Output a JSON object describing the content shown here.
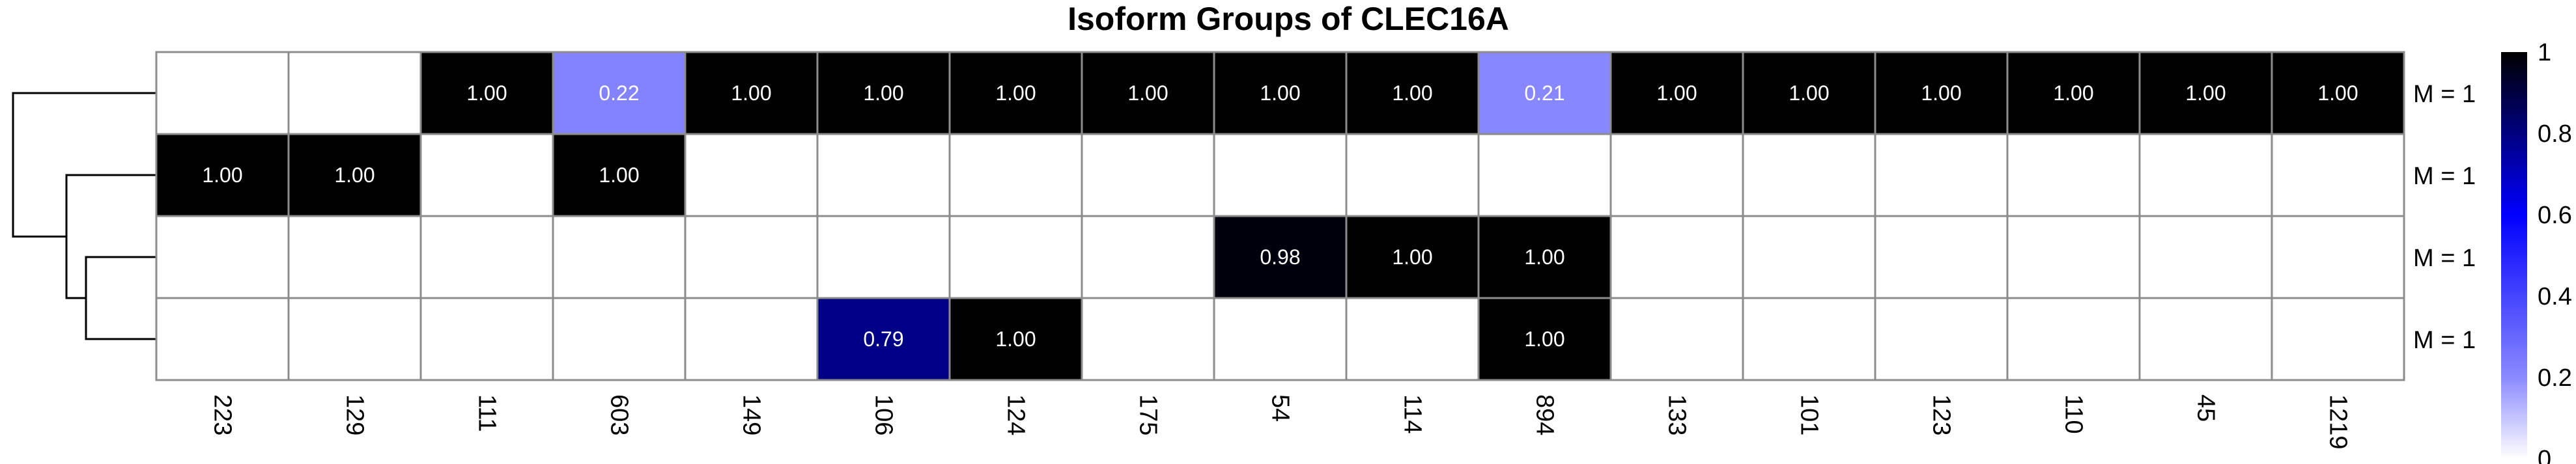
{
  "chart_data": {
    "type": "heatmap",
    "title": "Isoform Groups of CLEC16A",
    "columns": [
      "223",
      "129",
      "111",
      "603",
      "149",
      "106",
      "124",
      "175",
      "54",
      "114",
      "894",
      "133",
      "101",
      "123",
      "110",
      "45",
      "1219"
    ],
    "rows": [
      "M = 1",
      "M = 1",
      "M = 1",
      "M = 1"
    ],
    "values": [
      [
        null,
        null,
        1.0,
        0.22,
        1.0,
        1.0,
        1.0,
        1.0,
        1.0,
        1.0,
        0.21,
        1.0,
        1.0,
        1.0,
        1.0,
        1.0,
        1.0
      ],
      [
        1.0,
        1.0,
        null,
        1.0,
        null,
        null,
        null,
        null,
        null,
        null,
        null,
        null,
        null,
        null,
        null,
        null,
        null
      ],
      [
        null,
        null,
        null,
        null,
        null,
        null,
        null,
        null,
        0.98,
        1.0,
        1.0,
        null,
        null,
        null,
        null,
        null,
        null
      ],
      [
        null,
        null,
        null,
        null,
        null,
        0.79,
        1.0,
        null,
        null,
        null,
        1.0,
        null,
        null,
        null,
        null,
        null,
        null
      ]
    ],
    "cell_labels": [
      [
        "",
        "",
        "1.00",
        "0.22",
        "1.00",
        "1.00",
        "1.00",
        "1.00",
        "1.00",
        "1.00",
        "0.21",
        "1.00",
        "1.00",
        "1.00",
        "1.00",
        "1.00",
        "1.00"
      ],
      [
        "1.00",
        "1.00",
        "",
        "1.00",
        "",
        "",
        "",
        "",
        "",
        "",
        "",
        "",
        "",
        "",
        "",
        "",
        ""
      ],
      [
        "",
        "",
        "",
        "",
        "",
        "",
        "",
        "",
        "0.98",
        "1.00",
        "1.00",
        "",
        "",
        "",
        "",
        "",
        ""
      ],
      [
        "",
        "",
        "",
        "",
        "",
        "0.79",
        "1.00",
        "",
        "",
        "",
        "1.00",
        "",
        "",
        "",
        "",
        "",
        ""
      ]
    ],
    "color_scale": {
      "range": [
        0,
        1
      ],
      "colors": [
        "#ffffff",
        "#8a8aff",
        "#0000ff",
        "#000000"
      ],
      "stops": [
        0,
        0.2,
        0.6,
        1
      ]
    },
    "legend": {
      "ticks": [
        "0",
        "0.2",
        "0.4",
        "0.6",
        "0.8",
        "1"
      ],
      "position": "right"
    },
    "dendrogram": "rows"
  }
}
